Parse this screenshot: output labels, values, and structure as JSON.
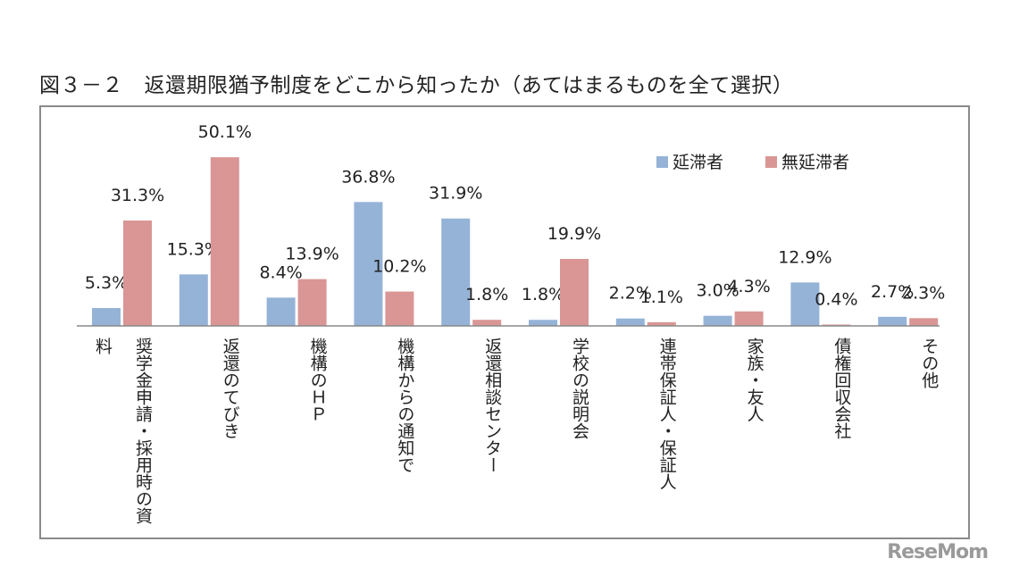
{
  "chart_data": {
    "type": "bar",
    "title": "図３－２　返還期限猶予制度をどこから知ったか（あてはまるものを全て選択）",
    "categories": [
      "奨学金申請・採用時の資料",
      "返還のてびき",
      "機構のＨＰ",
      "機構からの通知で",
      "返還相談センター",
      "学校の説明会",
      "連帯保証人・保証人",
      "家族・友人",
      "債権回収会社",
      "その他"
    ],
    "series": [
      {
        "name": "延滞者",
        "color": "#95B3D7",
        "values": [
          5.3,
          15.3,
          8.4,
          36.8,
          31.9,
          1.8,
          2.2,
          3.0,
          12.9,
          2.7
        ],
        "labels": [
          "5.3%",
          "15.3%",
          "8.4%",
          "36.8%",
          "31.9%",
          "1.8%",
          "2.2%",
          "3.0%",
          "12.9%",
          "2.7%"
        ]
      },
      {
        "name": "無延滞者",
        "color": "#D99694",
        "values": [
          31.3,
          50.1,
          13.9,
          10.2,
          1.8,
          19.9,
          1.1,
          4.3,
          0.4,
          2.3
        ],
        "labels": [
          "31.3%",
          "50.1%",
          "13.9%",
          "10.2%",
          "1.8%",
          "19.9%",
          "1.1%",
          "4.3%",
          "0.4%",
          "2.3%"
        ]
      }
    ],
    "unit": "%",
    "ylim": [
      0,
      55
    ],
    "grid": false,
    "legend": "top-right"
  },
  "watermark": "ReseMom"
}
